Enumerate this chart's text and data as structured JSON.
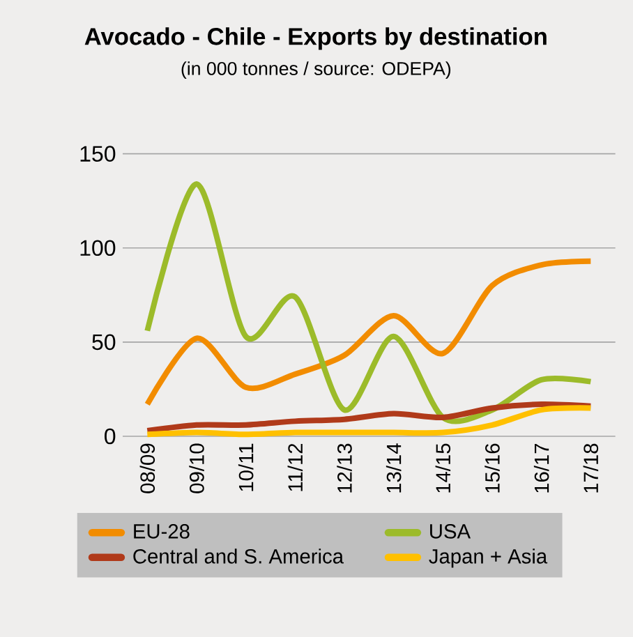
{
  "chart_data": {
    "type": "line",
    "title": "Avocado - Chile - Exports by destination",
    "subtitle": "(in 000 tonnes / source: ODEPA)",
    "categories": [
      "08/09",
      "09/10",
      "10/11",
      "11/12",
      "12/13",
      "13/14",
      "14/15",
      "15/16",
      "16/17",
      "17/18"
    ],
    "series": [
      {
        "name": "EU-28",
        "color": "#f28c00",
        "values": [
          17,
          52,
          26,
          33,
          43,
          64,
          44,
          80,
          91,
          93
        ]
      },
      {
        "name": "USA",
        "color": "#9cbb2a",
        "values": [
          56,
          134,
          53,
          74,
          14,
          53,
          10,
          14,
          30,
          29
        ]
      },
      {
        "name": "Central and S. America",
        "color": "#b03a1a",
        "values": [
          3,
          6,
          6,
          8,
          9,
          12,
          10,
          15,
          17,
          16
        ]
      },
      {
        "name": "Japan + Asia",
        "color": "#ffc000",
        "values": [
          1,
          2,
          1,
          2,
          2,
          2,
          2,
          6,
          14,
          15
        ]
      }
    ],
    "ylim": [
      0,
      150
    ],
    "yticks": [
      0,
      50,
      100,
      150
    ],
    "grid": "y",
    "legend": "bottom",
    "marker": "none",
    "line_style": "solid"
  }
}
